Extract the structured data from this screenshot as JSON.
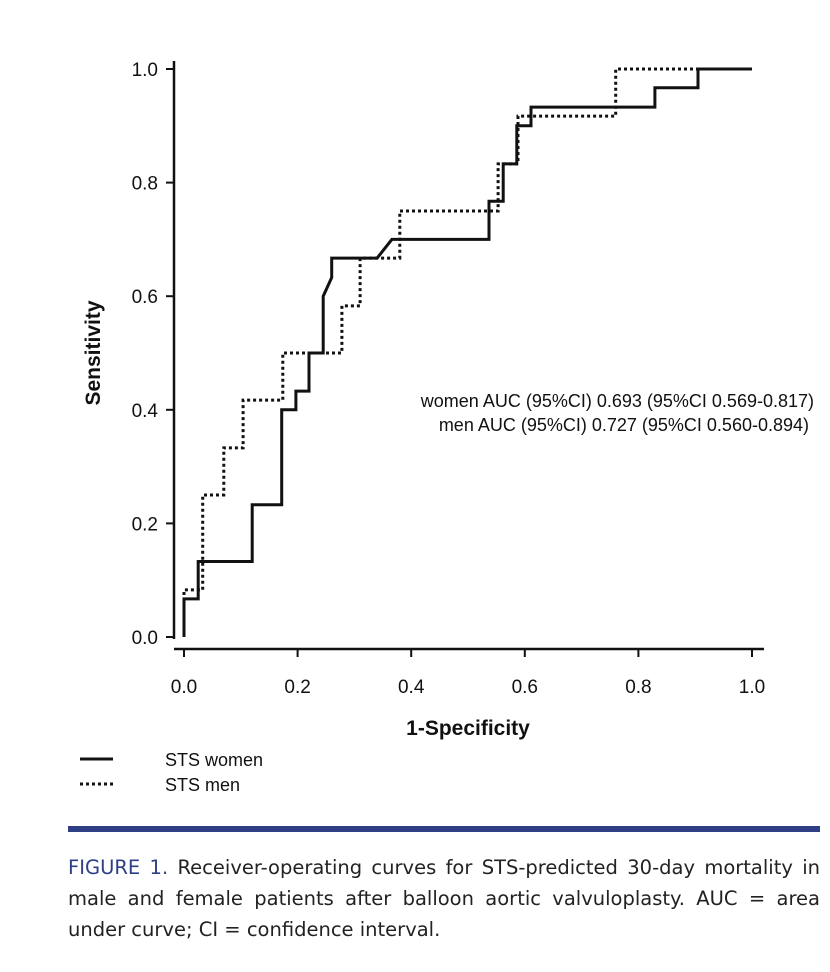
{
  "chart_data": {
    "type": "line",
    "xlabel": "1-Specificity",
    "ylabel": "Sensitivity",
    "xlim": [
      0,
      1
    ],
    "ylim": [
      0,
      1
    ],
    "xticks": [
      "0.0",
      "0.2",
      "0.4",
      "0.6",
      "0.8",
      "1.0"
    ],
    "yticks": [
      "0.0",
      "0.2",
      "0.4",
      "0.6",
      "0.8",
      "1.0"
    ],
    "grid": false,
    "legend_position": "bottom-left",
    "annotations": [
      "women AUC (95%CI) 0.693 (95%CI 0.569-0.817)",
      "men AUC (95%CI) 0.727 (95%CI 0.560-0.894)"
    ],
    "series": [
      {
        "name": "STS women",
        "style": "solid",
        "x": [
          0,
          0,
          0.025,
          0.025,
          0.12,
          0.12,
          0.172,
          0.172,
          0.197,
          0.197,
          0.22,
          0.22,
          0.245,
          0.245,
          0.26,
          0.26,
          0.34,
          0.366,
          0.537,
          0.537,
          0.562,
          0.562,
          0.586,
          0.586,
          0.611,
          0.611,
          0.829,
          0.829,
          0.905,
          0.905,
          1.0
        ],
        "y": [
          0,
          0.067,
          0.067,
          0.133,
          0.133,
          0.233,
          0.233,
          0.4,
          0.4,
          0.433,
          0.433,
          0.5,
          0.5,
          0.6,
          0.633,
          0.667,
          0.667,
          0.7,
          0.7,
          0.767,
          0.767,
          0.833,
          0.833,
          0.9,
          0.9,
          0.933,
          0.933,
          0.967,
          0.967,
          1.0,
          1.0
        ]
      },
      {
        "name": "STS men",
        "style": "dotted",
        "x": [
          0,
          0,
          0.033,
          0.033,
          0.07,
          0.07,
          0.104,
          0.104,
          0.174,
          0.174,
          0.278,
          0.278,
          0.31,
          0.31,
          0.38,
          0.38,
          0.553,
          0.553,
          0.588,
          0.588,
          0.76,
          0.76,
          0.905
        ],
        "y": [
          0,
          0.083,
          0.083,
          0.25,
          0.25,
          0.333,
          0.333,
          0.417,
          0.417,
          0.5,
          0.5,
          0.583,
          0.583,
          0.667,
          0.667,
          0.75,
          0.75,
          0.833,
          0.833,
          0.917,
          0.917,
          1.0,
          1.0
        ]
      }
    ]
  },
  "caption": {
    "label": "FIGURE 1.",
    "text": " Receiver-operating curves for STS-predicted 30-day mortality in male and female patients after balloon aortic valvuloplasty. AUC = area under curve; CI = confidence interval."
  }
}
